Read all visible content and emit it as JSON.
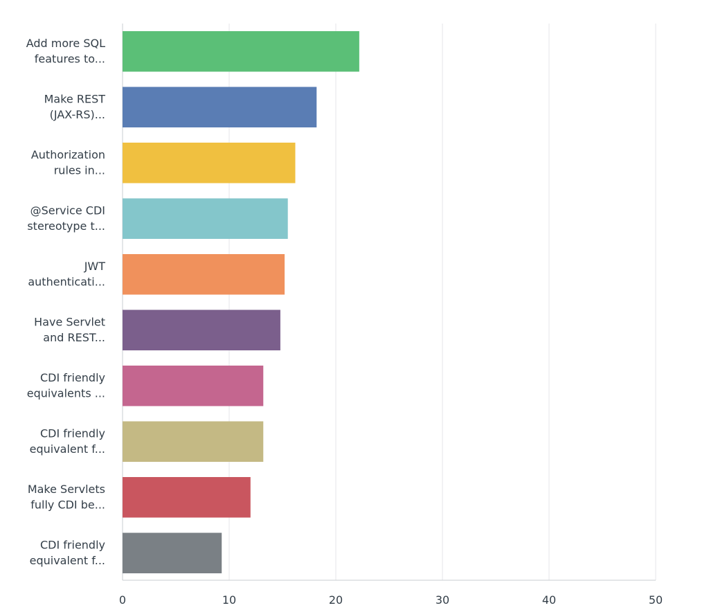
{
  "chart_data": {
    "type": "bar",
    "orientation": "horizontal",
    "categories": [
      [
        "Add more SQL",
        "features to..."
      ],
      [
        "Make REST",
        "(JAX-RS)..."
      ],
      [
        "Authorization",
        "rules in..."
      ],
      [
        "@Service CDI",
        "stereotype t..."
      ],
      [
        "JWT",
        "authenticati..."
      ],
      [
        "Have Servlet",
        "and REST..."
      ],
      [
        "CDI friendly",
        "equivalents ..."
      ],
      [
        "CDI friendly",
        "equivalent f..."
      ],
      [
        "Make Servlets",
        "fully CDI be..."
      ],
      [
        "CDI friendly",
        "equivalent f..."
      ]
    ],
    "values": [
      22.2,
      18.2,
      16.2,
      15.5,
      15.2,
      14.8,
      13.2,
      13.2,
      12.0,
      9.3
    ],
    "colors": [
      "#5bbf77",
      "#5a7db4",
      "#f0c040",
      "#84c6cb",
      "#f0915c",
      "#7b5f8c",
      "#c4668f",
      "#c4b984",
      "#c9565f",
      "#7a8085"
    ],
    "xlim": [
      0,
      50
    ],
    "xticks": [
      "0",
      "10",
      "20",
      "30",
      "40",
      "50"
    ],
    "title": "",
    "xlabel": "",
    "ylabel": "",
    "grid": "vertical",
    "legend": "none"
  }
}
